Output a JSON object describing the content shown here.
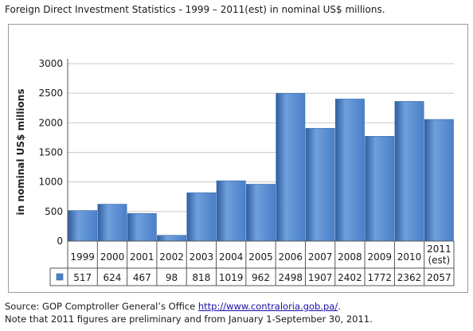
{
  "title": "Foreign Direct Investment Statistics  - 1999 – 2011(est) in nominal US$ millions.",
  "footer": {
    "source_prefix": "Source: GOP Comptroller General’s Office ",
    "source_link": "http://www.contraloria.gob.pa/",
    "source_suffix": ".",
    "note": "Note that 2011 figures are preliminary and from January 1-September 30, 2011."
  },
  "colors": {
    "bar": "#4a80c8",
    "bar_light": "#6f9fdc",
    "bar_dark": "#2f5f9f",
    "grid": "#c8c8c8",
    "axis": "#555555"
  },
  "chart_data": {
    "type": "bar",
    "categories": [
      "1999",
      "2000",
      "2001",
      "2002",
      "2003",
      "2004",
      "2005",
      "2006",
      "2007",
      "2008",
      "2009",
      "2010",
      "2011 (est)"
    ],
    "category_lines": [
      [
        "1999"
      ],
      [
        "2000"
      ],
      [
        "2001"
      ],
      [
        "2002"
      ],
      [
        "2003"
      ],
      [
        "2004"
      ],
      [
        "2005"
      ],
      [
        "2006"
      ],
      [
        "2007"
      ],
      [
        "2008"
      ],
      [
        "2009"
      ],
      [
        "2010"
      ],
      [
        "2011",
        "(est)"
      ]
    ],
    "values": [
      517,
      624,
      467,
      98,
      818,
      1019,
      962,
      2498,
      1907,
      2402,
      1772,
      2362,
      2057
    ],
    "ylabel": "in nominal US$ millions",
    "xlabel": "",
    "ylim": [
      0,
      3000
    ],
    "yticks": [
      0,
      500,
      1000,
      1500,
      2000,
      2500,
      3000
    ],
    "grid": true,
    "data_table": true,
    "legend": "data table row key"
  }
}
